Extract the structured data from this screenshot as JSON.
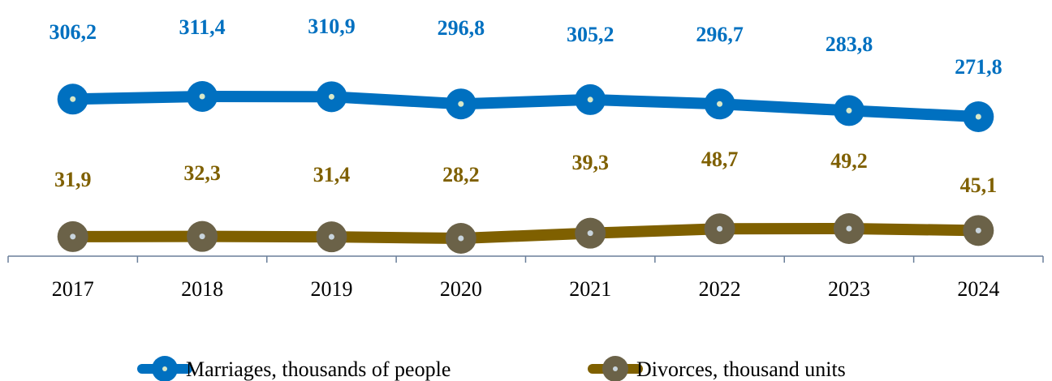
{
  "chart_data": {
    "type": "line",
    "title": "",
    "xlabel": "",
    "ylabel": "",
    "categories": [
      "2017",
      "2018",
      "2019",
      "2020",
      "2021",
      "2022",
      "2023",
      "2024"
    ],
    "series": [
      {
        "name": "Marriages, thousands of people",
        "values": [
          306.2,
          311.4,
          310.9,
          296.8,
          305.2,
          296.7,
          283.8,
          271.8
        ],
        "labels": [
          "306,2",
          "311,4",
          "310,9",
          "296,8",
          "305,2",
          "296,7",
          "283,8",
          "271,8"
        ],
        "color": "#0070C0",
        "marker_dot_color": "#d8e8c8"
      },
      {
        "name": "Divorces, thousand units",
        "values": [
          31.9,
          32.3,
          31.4,
          28.2,
          39.3,
          48.7,
          49.2,
          45.1
        ],
        "labels": [
          "31,9",
          "32,3",
          "31,4",
          "28,2",
          "39,3",
          "48,7",
          "49,2",
          "45,1"
        ],
        "color": "#7F6000",
        "marker_color": "#6b6248",
        "label_color": "#7F6000"
      }
    ],
    "grid": false,
    "y_axis_visible": false,
    "legend_position": "bottom",
    "axis_color": "#6a7f9a"
  }
}
